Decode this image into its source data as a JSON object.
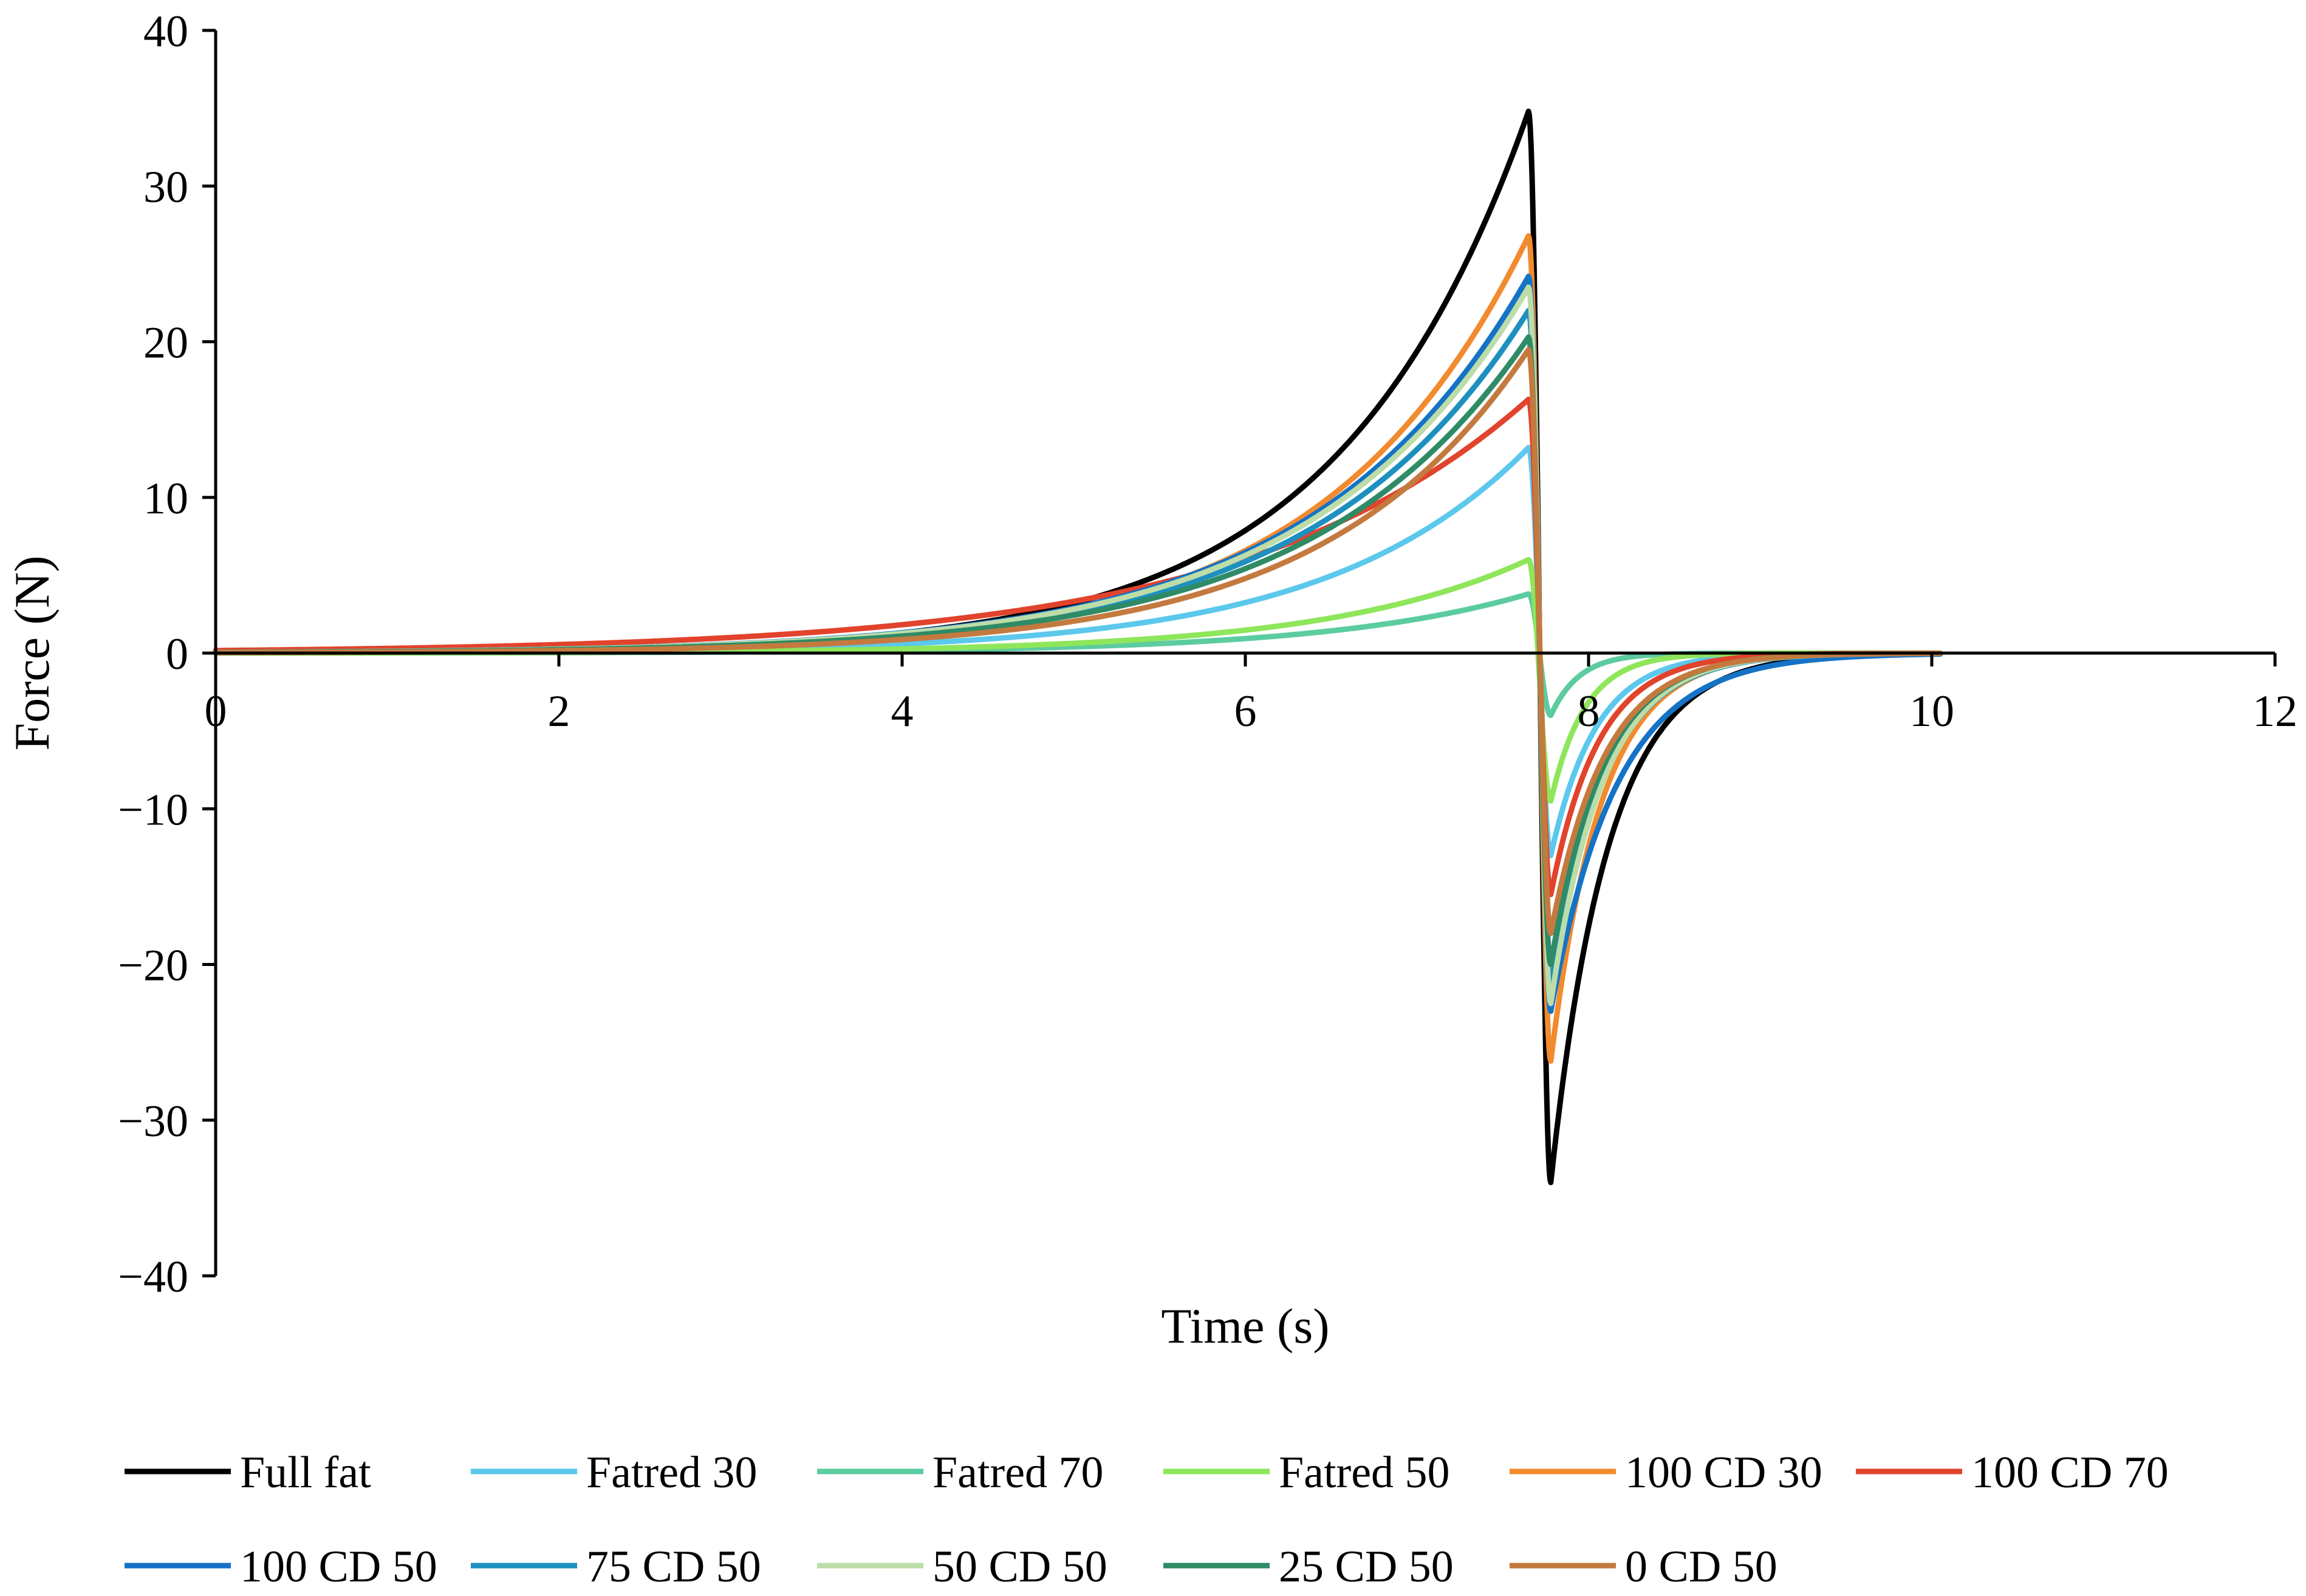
{
  "chart_data": {
    "type": "line",
    "title": "",
    "xlabel": "Time (s)",
    "ylabel": "Force (N)",
    "xlim": [
      0,
      12
    ],
    "ylim": [
      -40,
      40
    ],
    "x_ticks": [
      0,
      2,
      4,
      6,
      8,
      10,
      12
    ],
    "y_ticks": [
      40,
      30,
      20,
      10,
      0,
      -10,
      -20,
      -30,
      -40
    ],
    "x_tick_labels": [
      "0",
      "2",
      "4",
      "6",
      "8",
      "10",
      "12"
    ],
    "y_tick_labels": [
      "40",
      "30",
      "20",
      "10",
      "0",
      "−10",
      "−20",
      "−30",
      "−40"
    ],
    "grid": false,
    "legend_position": "bottom",
    "curve_model": {
      "t_start": 0,
      "t_peak": 7.65,
      "t_trough": 7.78,
      "t_end": 10.05,
      "note": "peak and trough forces per series estimated from the figure"
    },
    "series": [
      {
        "name": "Full fat",
        "color": "#000000",
        "peak": 34.8,
        "trough": -34.0,
        "rise_k": 0.9,
        "recover_k": 3.0
      },
      {
        "name": "Fatred 30",
        "color": "#5bc8ec",
        "peak": 13.2,
        "trough": -13.0,
        "rise_k": 0.85,
        "recover_k": 3.8
      },
      {
        "name": "Fatred 70",
        "color": "#5ccca0",
        "peak": 3.8,
        "trough": -4.0,
        "rise_k": 0.85,
        "recover_k": 6.0
      },
      {
        "name": "Fatred 50",
        "color": "#8ee65a",
        "peak": 6.0,
        "trough": -9.5,
        "rise_k": 0.85,
        "recover_k": 5.0
      },
      {
        "name": "100 CD 30",
        "color": "#f28a2e",
        "peak": 26.8,
        "trough": -26.2,
        "rise_k": 0.85,
        "recover_k": 3.4
      },
      {
        "name": "100 CD 70",
        "color": "#e2432c",
        "peak": 16.3,
        "trough": -15.5,
        "rise_k": 0.6,
        "recover_k": 3.6
      },
      {
        "name": "100 CD 50",
        "color": "#1573c7",
        "peak": 24.2,
        "trough": -23.0,
        "rise_k": 0.8,
        "recover_k": 2.6
      },
      {
        "name": "75 CD 50",
        "color": "#1e90c0",
        "peak": 22.0,
        "trough": -21.5,
        "rise_k": 0.8,
        "recover_k": 3.2
      },
      {
        "name": "50 CD 50",
        "color": "#bcdca8",
        "peak": 23.5,
        "trough": -22.5,
        "rise_k": 0.8,
        "recover_k": 3.3
      },
      {
        "name": "25 CD 50",
        "color": "#2e8b66",
        "peak": 20.3,
        "trough": -20.0,
        "rise_k": 0.8,
        "recover_k": 3.3
      },
      {
        "name": "0 CD 50",
        "color": "#c47a3f",
        "peak": 19.5,
        "trough": -18.0,
        "rise_k": 0.85,
        "recover_k": 3.2
      }
    ]
  }
}
